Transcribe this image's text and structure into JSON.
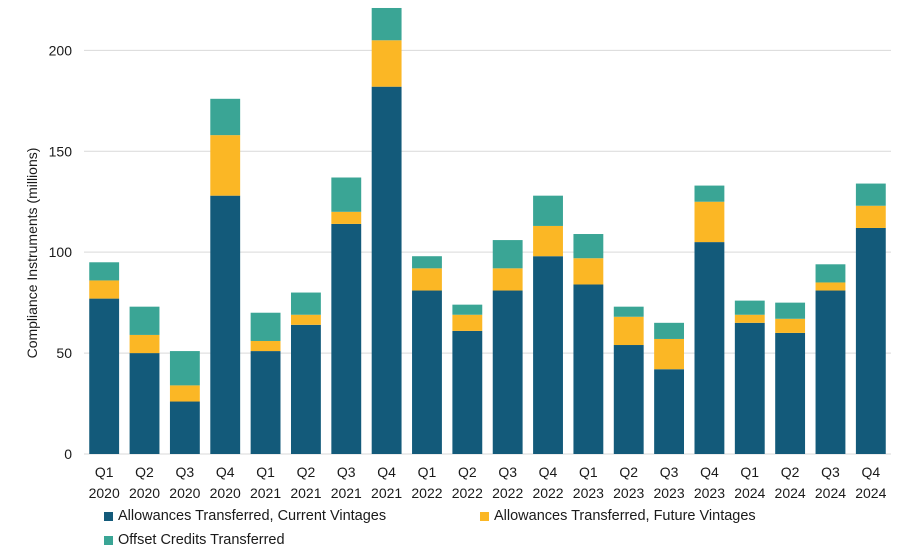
{
  "chart_data": {
    "type": "bar",
    "stacked": true,
    "ylabel": "Compliance Instruments (millions)",
    "xlabel": "",
    "title": "",
    "ylim": [
      0,
      220
    ],
    "yticks": [
      0,
      50,
      100,
      150,
      200
    ],
    "grid": "horizontal",
    "legend_position": "bottom",
    "categories": [
      [
        "Q1",
        "2020"
      ],
      [
        "Q2",
        "2020"
      ],
      [
        "Q3",
        "2020"
      ],
      [
        "Q4",
        "2020"
      ],
      [
        "Q1",
        "2021"
      ],
      [
        "Q2",
        "2021"
      ],
      [
        "Q3",
        "2021"
      ],
      [
        "Q4",
        "2021"
      ],
      [
        "Q1",
        "2022"
      ],
      [
        "Q2",
        "2022"
      ],
      [
        "Q3",
        "2022"
      ],
      [
        "Q4",
        "2022"
      ],
      [
        "Q1",
        "2023"
      ],
      [
        "Q2",
        "2023"
      ],
      [
        "Q3",
        "2023"
      ],
      [
        "Q4",
        "2023"
      ],
      [
        "Q1",
        "2024"
      ],
      [
        "Q2",
        "2024"
      ],
      [
        "Q3",
        "2024"
      ],
      [
        "Q4",
        "2024"
      ]
    ],
    "series": [
      {
        "name": "Allowances Transferred, Current Vintages",
        "color": "#135a7a",
        "values": [
          77,
          50,
          26,
          128,
          51,
          64,
          114,
          182,
          81,
          61,
          81,
          98,
          84,
          54,
          42,
          105,
          65,
          60,
          81,
          112
        ]
      },
      {
        "name": "Allowances Transferred, Future Vintages",
        "color": "#fbb725",
        "values": [
          9,
          9,
          8,
          30,
          5,
          5,
          6,
          23,
          11,
          8,
          11,
          15,
          13,
          14,
          15,
          20,
          4,
          7,
          4,
          11
        ]
      },
      {
        "name": "Offset Credits Transferred",
        "color": "#3aa595",
        "values": [
          9,
          14,
          17,
          18,
          14,
          11,
          17,
          16,
          6,
          5,
          14,
          15,
          12,
          5,
          8,
          8,
          7,
          8,
          9,
          11
        ]
      }
    ]
  }
}
